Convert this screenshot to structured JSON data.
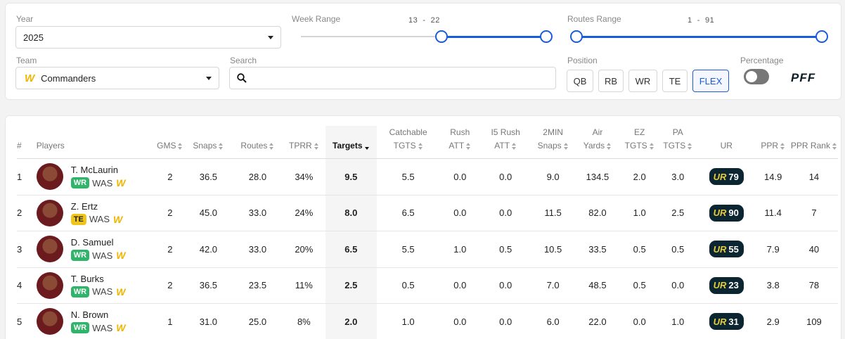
{
  "filters": {
    "year_label": "Year",
    "year_value": "2025",
    "week_label": "Week Range",
    "week_start": "13",
    "week_sep": "-",
    "week_end": "22",
    "routes_label": "Routes Range",
    "routes_start": "1",
    "routes_sep": "-",
    "routes_end": "91",
    "team_label": "Team",
    "team_value": "Commanders",
    "team_logo": "W",
    "search_label": "Search",
    "search_value": "",
    "position_label": "Position",
    "positions": [
      "QB",
      "RB",
      "WR",
      "TE",
      "FLEX"
    ],
    "active_position": "FLEX",
    "percentage_label": "Percentage",
    "brand": "PFF"
  },
  "table": {
    "headers": {
      "rank": "#",
      "players": "Players",
      "gms": "GMS",
      "snaps": "Snaps",
      "routes": "Routes",
      "tprr": "TPRR",
      "targets": "Targets",
      "catchable_1": "Catchable",
      "catchable_2": "TGTS",
      "rush_1": "Rush",
      "rush_2": "ATT",
      "i5_1": "I5 Rush",
      "i5_2": "ATT",
      "twomin_1": "2MIN",
      "twomin_2": "Snaps",
      "air_1": "Air",
      "air_2": "Yards",
      "ez_1": "EZ",
      "ez_2": "TGTS",
      "pa_1": "PA",
      "pa_2": "TGTS",
      "ur": "UR",
      "ppr": "PPR",
      "ppr_rank": "PPR Rank"
    },
    "ur_logo": "UR",
    "team_logo": "W",
    "rows": [
      {
        "rank": "1",
        "name": "T. McLaurin",
        "pos": "WR",
        "team": "WAS",
        "gms": "2",
        "snaps": "36.5",
        "routes": "28.0",
        "tprr": "34%",
        "targets": "9.5",
        "catchable": "5.5",
        "rush": "0.0",
        "i5": "0.0",
        "twomin": "9.0",
        "air": "134.5",
        "ez": "2.0",
        "pa": "3.0",
        "ur": "79",
        "ppr": "14.9",
        "ppr_rank": "14"
      },
      {
        "rank": "2",
        "name": "Z. Ertz",
        "pos": "TE",
        "team": "WAS",
        "gms": "2",
        "snaps": "45.0",
        "routes": "33.0",
        "tprr": "24%",
        "targets": "8.0",
        "catchable": "6.5",
        "rush": "0.0",
        "i5": "0.0",
        "twomin": "11.5",
        "air": "82.0",
        "ez": "1.0",
        "pa": "2.5",
        "ur": "90",
        "ppr": "11.4",
        "ppr_rank": "7"
      },
      {
        "rank": "3",
        "name": "D. Samuel",
        "pos": "WR",
        "team": "WAS",
        "gms": "2",
        "snaps": "42.0",
        "routes": "33.0",
        "tprr": "20%",
        "targets": "6.5",
        "catchable": "5.5",
        "rush": "1.0",
        "i5": "0.5",
        "twomin": "10.5",
        "air": "33.5",
        "ez": "0.5",
        "pa": "0.5",
        "ur": "55",
        "ppr": "7.9",
        "ppr_rank": "40"
      },
      {
        "rank": "4",
        "name": "T. Burks",
        "pos": "WR",
        "team": "WAS",
        "gms": "2",
        "snaps": "36.5",
        "routes": "23.5",
        "tprr": "11%",
        "targets": "2.5",
        "catchable": "0.5",
        "rush": "0.0",
        "i5": "0.0",
        "twomin": "7.0",
        "air": "48.5",
        "ez": "0.5",
        "pa": "0.0",
        "ur": "23",
        "ppr": "3.8",
        "ppr_rank": "78"
      },
      {
        "rank": "5",
        "name": "N. Brown",
        "pos": "WR",
        "team": "WAS",
        "gms": "1",
        "snaps": "31.0",
        "routes": "25.0",
        "tprr": "8%",
        "targets": "2.0",
        "catchable": "1.0",
        "rush": "0.0",
        "i5": "0.0",
        "twomin": "6.0",
        "air": "22.0",
        "ez": "0.0",
        "pa": "1.0",
        "ur": "31",
        "ppr": "2.9",
        "ppr_rank": "109"
      }
    ]
  }
}
